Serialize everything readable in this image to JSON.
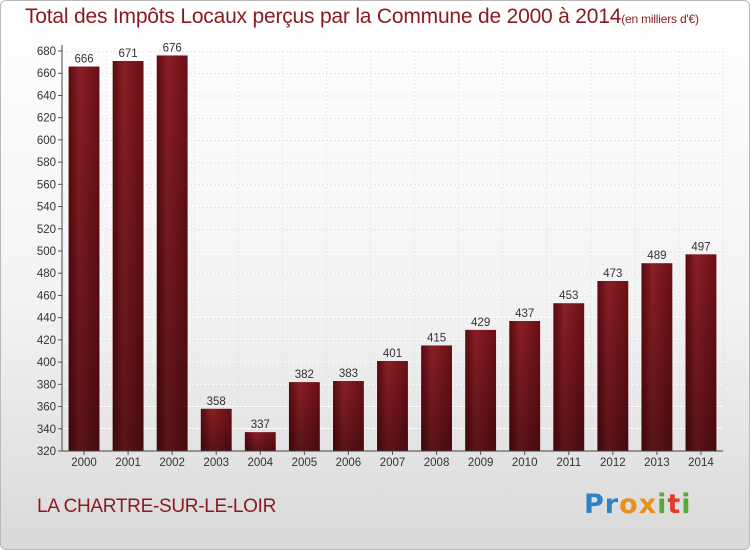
{
  "title": "Total des Impôts Locaux perçus par la Commune de 2000 à 2014",
  "title_unit": "(en milliers d'€)",
  "commune": "LA CHARTRE-SUR-LE-LOIR",
  "brand": {
    "letters": [
      "P",
      "r",
      "o",
      "x",
      "i",
      "t",
      "i"
    ],
    "colors": [
      "#2f82c6",
      "#2f82c6",
      "#e8901a",
      "#e8901a",
      "#5aa934",
      "#e03a2f",
      "#5aa934"
    ]
  },
  "colors": {
    "bar": "#7a1218",
    "bar_dark": "#4a070b",
    "bar_light": "#9a2a30",
    "text": "#8b1a1f"
  },
  "chart_data": {
    "type": "bar",
    "title": "Total des Impôts Locaux perçus par la Commune de 2000 à 2014",
    "categories": [
      "2000",
      "2001",
      "2002",
      "2003",
      "2004",
      "2005",
      "2006",
      "2007",
      "2008",
      "2009",
      "2010",
      "2011",
      "2012",
      "2013",
      "2014"
    ],
    "values": [
      666,
      671,
      676,
      358,
      337,
      382,
      383,
      401,
      415,
      429,
      437,
      453,
      473,
      489,
      497
    ],
    "ylim": [
      320,
      680
    ],
    "yticks": [
      320,
      340,
      360,
      380,
      400,
      420,
      440,
      460,
      480,
      500,
      520,
      540,
      560,
      580,
      600,
      620,
      640,
      660,
      680
    ],
    "grid": true,
    "xlabel": "",
    "ylabel": ""
  }
}
